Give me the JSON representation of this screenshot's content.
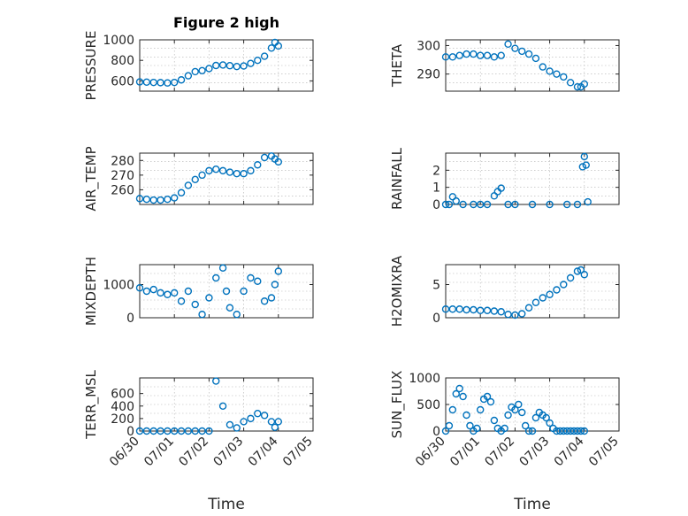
{
  "figure": {
    "title": "Figure 2 high",
    "xlabel": "Time",
    "marker_color": "#0072BD",
    "xticks": [
      "06/30",
      "07/01",
      "07/02",
      "07/03",
      "07/04",
      "07/05"
    ]
  },
  "chart_data": [
    {
      "type": "scatter",
      "ylabel": "PRESSURE",
      "xlim": [
        0,
        5
      ],
      "ylim": [
        500,
        1000
      ],
      "yticks": [
        600,
        800,
        1000
      ],
      "grid": true,
      "x": [
        0.0,
        0.2,
        0.4,
        0.6,
        0.8,
        1.0,
        1.2,
        1.4,
        1.6,
        1.8,
        2.0,
        2.2,
        2.4,
        2.6,
        2.8,
        3.0,
        3.2,
        3.4,
        3.6,
        3.8,
        3.9,
        4.0
      ],
      "y": [
        590,
        588,
        585,
        583,
        580,
        585,
        610,
        650,
        690,
        700,
        720,
        750,
        755,
        748,
        740,
        745,
        770,
        800,
        840,
        920,
        975,
        940
      ]
    },
    {
      "type": "scatter",
      "ylabel": "THETA",
      "xlim": [
        0,
        5
      ],
      "ylim": [
        284,
        302
      ],
      "yticks": [
        290,
        300
      ],
      "grid": true,
      "x": [
        0.0,
        0.2,
        0.4,
        0.6,
        0.8,
        1.0,
        1.2,
        1.4,
        1.6,
        1.8,
        2.0,
        2.2,
        2.4,
        2.6,
        2.8,
        3.0,
        3.2,
        3.4,
        3.6,
        3.8,
        3.9,
        4.0
      ],
      "y": [
        296,
        296,
        296.5,
        297,
        297,
        296.5,
        296.5,
        296,
        296.5,
        300.5,
        299,
        298,
        297,
        295.5,
        292.5,
        291,
        290,
        289,
        287,
        285.5,
        285.5,
        286.5
      ]
    },
    {
      "type": "scatter",
      "ylabel": "AIR_TEMP",
      "xlim": [
        0,
        5
      ],
      "ylim": [
        250,
        285
      ],
      "yticks": [
        260,
        270,
        280
      ],
      "grid": true,
      "x": [
        0.0,
        0.2,
        0.4,
        0.6,
        0.8,
        1.0,
        1.2,
        1.4,
        1.6,
        1.8,
        2.0,
        2.2,
        2.4,
        2.6,
        2.8,
        3.0,
        3.2,
        3.4,
        3.6,
        3.8,
        3.9,
        4.0
      ],
      "y": [
        254,
        253.5,
        253,
        253,
        253.5,
        254.5,
        258,
        263,
        267,
        270,
        273,
        274,
        273,
        272,
        271,
        271,
        273,
        277,
        282,
        283,
        281,
        279
      ]
    },
    {
      "type": "scatter",
      "ylabel": "RAINFALL",
      "xlim": [
        0,
        5
      ],
      "ylim": [
        0,
        3
      ],
      "yticks": [
        0,
        1,
        2
      ],
      "grid": true,
      "x": [
        0.0,
        0.1,
        0.2,
        0.3,
        0.5,
        0.8,
        1.0,
        1.2,
        1.4,
        1.5,
        1.6,
        1.8,
        2.0,
        2.5,
        3.0,
        3.5,
        3.8,
        3.95,
        4.0,
        4.05,
        4.1
      ],
      "y": [
        0,
        0,
        0.45,
        0.2,
        0,
        0,
        0,
        0,
        0.5,
        0.75,
        0.95,
        0,
        0,
        0,
        0,
        0,
        0,
        2.2,
        2.8,
        2.3,
        0.15
      ]
    },
    {
      "type": "scatter",
      "ylabel": "MIXDEPTH",
      "xlim": [
        0,
        5
      ],
      "ylim": [
        0,
        1600
      ],
      "yticks": [
        0,
        1000
      ],
      "grid": true,
      "x": [
        0.0,
        0.2,
        0.4,
        0.6,
        0.8,
        1.0,
        1.2,
        1.4,
        1.6,
        1.8,
        2.0,
        2.2,
        2.4,
        2.5,
        2.6,
        2.8,
        3.0,
        3.2,
        3.4,
        3.6,
        3.8,
        3.9,
        4.0
      ],
      "y": [
        900,
        800,
        850,
        750,
        700,
        750,
        500,
        800,
        400,
        100,
        600,
        1200,
        1500,
        800,
        300,
        100,
        800,
        1200,
        1100,
        500,
        600,
        1000,
        1400
      ]
    },
    {
      "type": "scatter",
      "ylabel": "H2OMIXRA",
      "xlim": [
        0,
        5
      ],
      "ylim": [
        0,
        8
      ],
      "yticks": [
        0,
        5
      ],
      "grid": true,
      "x": [
        0.0,
        0.2,
        0.4,
        0.6,
        0.8,
        1.0,
        1.2,
        1.4,
        1.6,
        1.8,
        2.0,
        2.2,
        2.4,
        2.6,
        2.8,
        3.0,
        3.2,
        3.4,
        3.6,
        3.8,
        3.9,
        4.0
      ],
      "y": [
        1.3,
        1.3,
        1.3,
        1.2,
        1.2,
        1.1,
        1.1,
        1.0,
        0.9,
        0.5,
        0.4,
        0.6,
        1.5,
        2.3,
        3.0,
        3.5,
        4.2,
        5.0,
        6.0,
        7.0,
        7.2,
        6.5
      ]
    },
    {
      "type": "scatter",
      "ylabel": "TERR_MSL",
      "xlim": [
        0,
        5
      ],
      "ylim": [
        0,
        850
      ],
      "yticks": [
        0,
        200,
        400,
        600
      ],
      "grid": true,
      "x": [
        0.0,
        0.2,
        0.4,
        0.6,
        0.8,
        1.0,
        1.2,
        1.4,
        1.6,
        1.8,
        2.0,
        2.2,
        2.4,
        2.6,
        2.8,
        3.0,
        3.2,
        3.4,
        3.6,
        3.8,
        3.9,
        4.0
      ],
      "y": [
        0,
        0,
        0,
        0,
        0,
        0,
        0,
        0,
        0,
        0,
        0,
        800,
        400,
        100,
        50,
        150,
        200,
        280,
        250,
        150,
        60,
        150
      ]
    },
    {
      "type": "scatter",
      "ylabel": "SUN_FLUX",
      "xlim": [
        0,
        5
      ],
      "ylim": [
        0,
        1000
      ],
      "yticks": [
        0,
        500,
        1000
      ],
      "grid": true,
      "x": [
        0.0,
        0.1,
        0.2,
        0.3,
        0.4,
        0.5,
        0.6,
        0.7,
        0.8,
        0.9,
        1.0,
        1.1,
        1.2,
        1.3,
        1.4,
        1.5,
        1.6,
        1.7,
        1.8,
        1.9,
        2.0,
        2.1,
        2.2,
        2.3,
        2.4,
        2.5,
        2.6,
        2.7,
        2.8,
        2.9,
        3.0,
        3.1,
        3.2,
        3.3,
        3.4,
        3.5,
        3.6,
        3.7,
        3.8,
        3.9,
        4.0
      ],
      "y": [
        0,
        100,
        400,
        700,
        800,
        650,
        300,
        100,
        0,
        50,
        400,
        600,
        650,
        550,
        200,
        50,
        0,
        50,
        300,
        450,
        400,
        500,
        350,
        100,
        0,
        0,
        250,
        350,
        300,
        250,
        150,
        50,
        0,
        0,
        0,
        0,
        0,
        0,
        0,
        0,
        0
      ]
    }
  ]
}
